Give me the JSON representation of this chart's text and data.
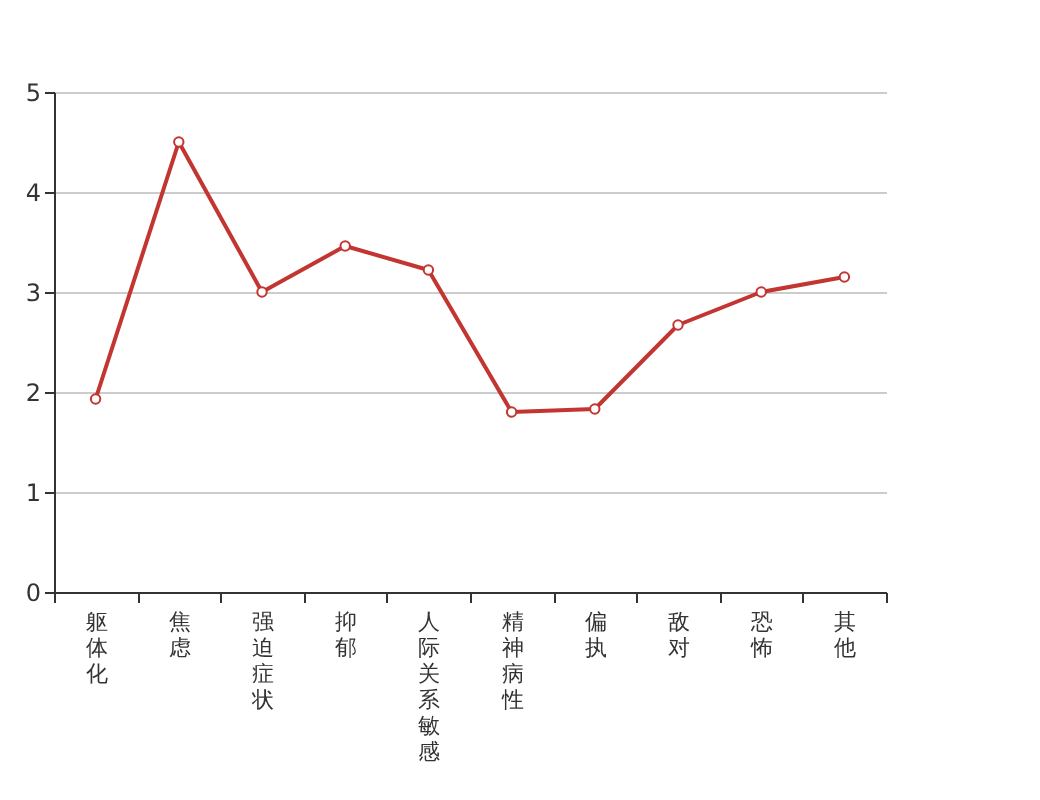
{
  "chart_data": {
    "type": "line",
    "categories": [
      "躯体化",
      "焦虑",
      "强迫症状",
      "抑郁",
      "人际关系敏感",
      "精神病性",
      "偏执",
      "敌对",
      "恐怖",
      "其他"
    ],
    "series": [
      {
        "color": "#c23531",
        "values": [
          1.93,
          4.5,
          3.0,
          3.46,
          3.22,
          1.8,
          1.83,
          2.67,
          3.0,
          3.15
        ]
      }
    ],
    "ylim": [
      0,
      5
    ],
    "yticks": [
      0,
      1,
      2,
      3,
      4,
      5
    ],
    "grid": "y",
    "marker": "circle",
    "line_style": "solid"
  }
}
